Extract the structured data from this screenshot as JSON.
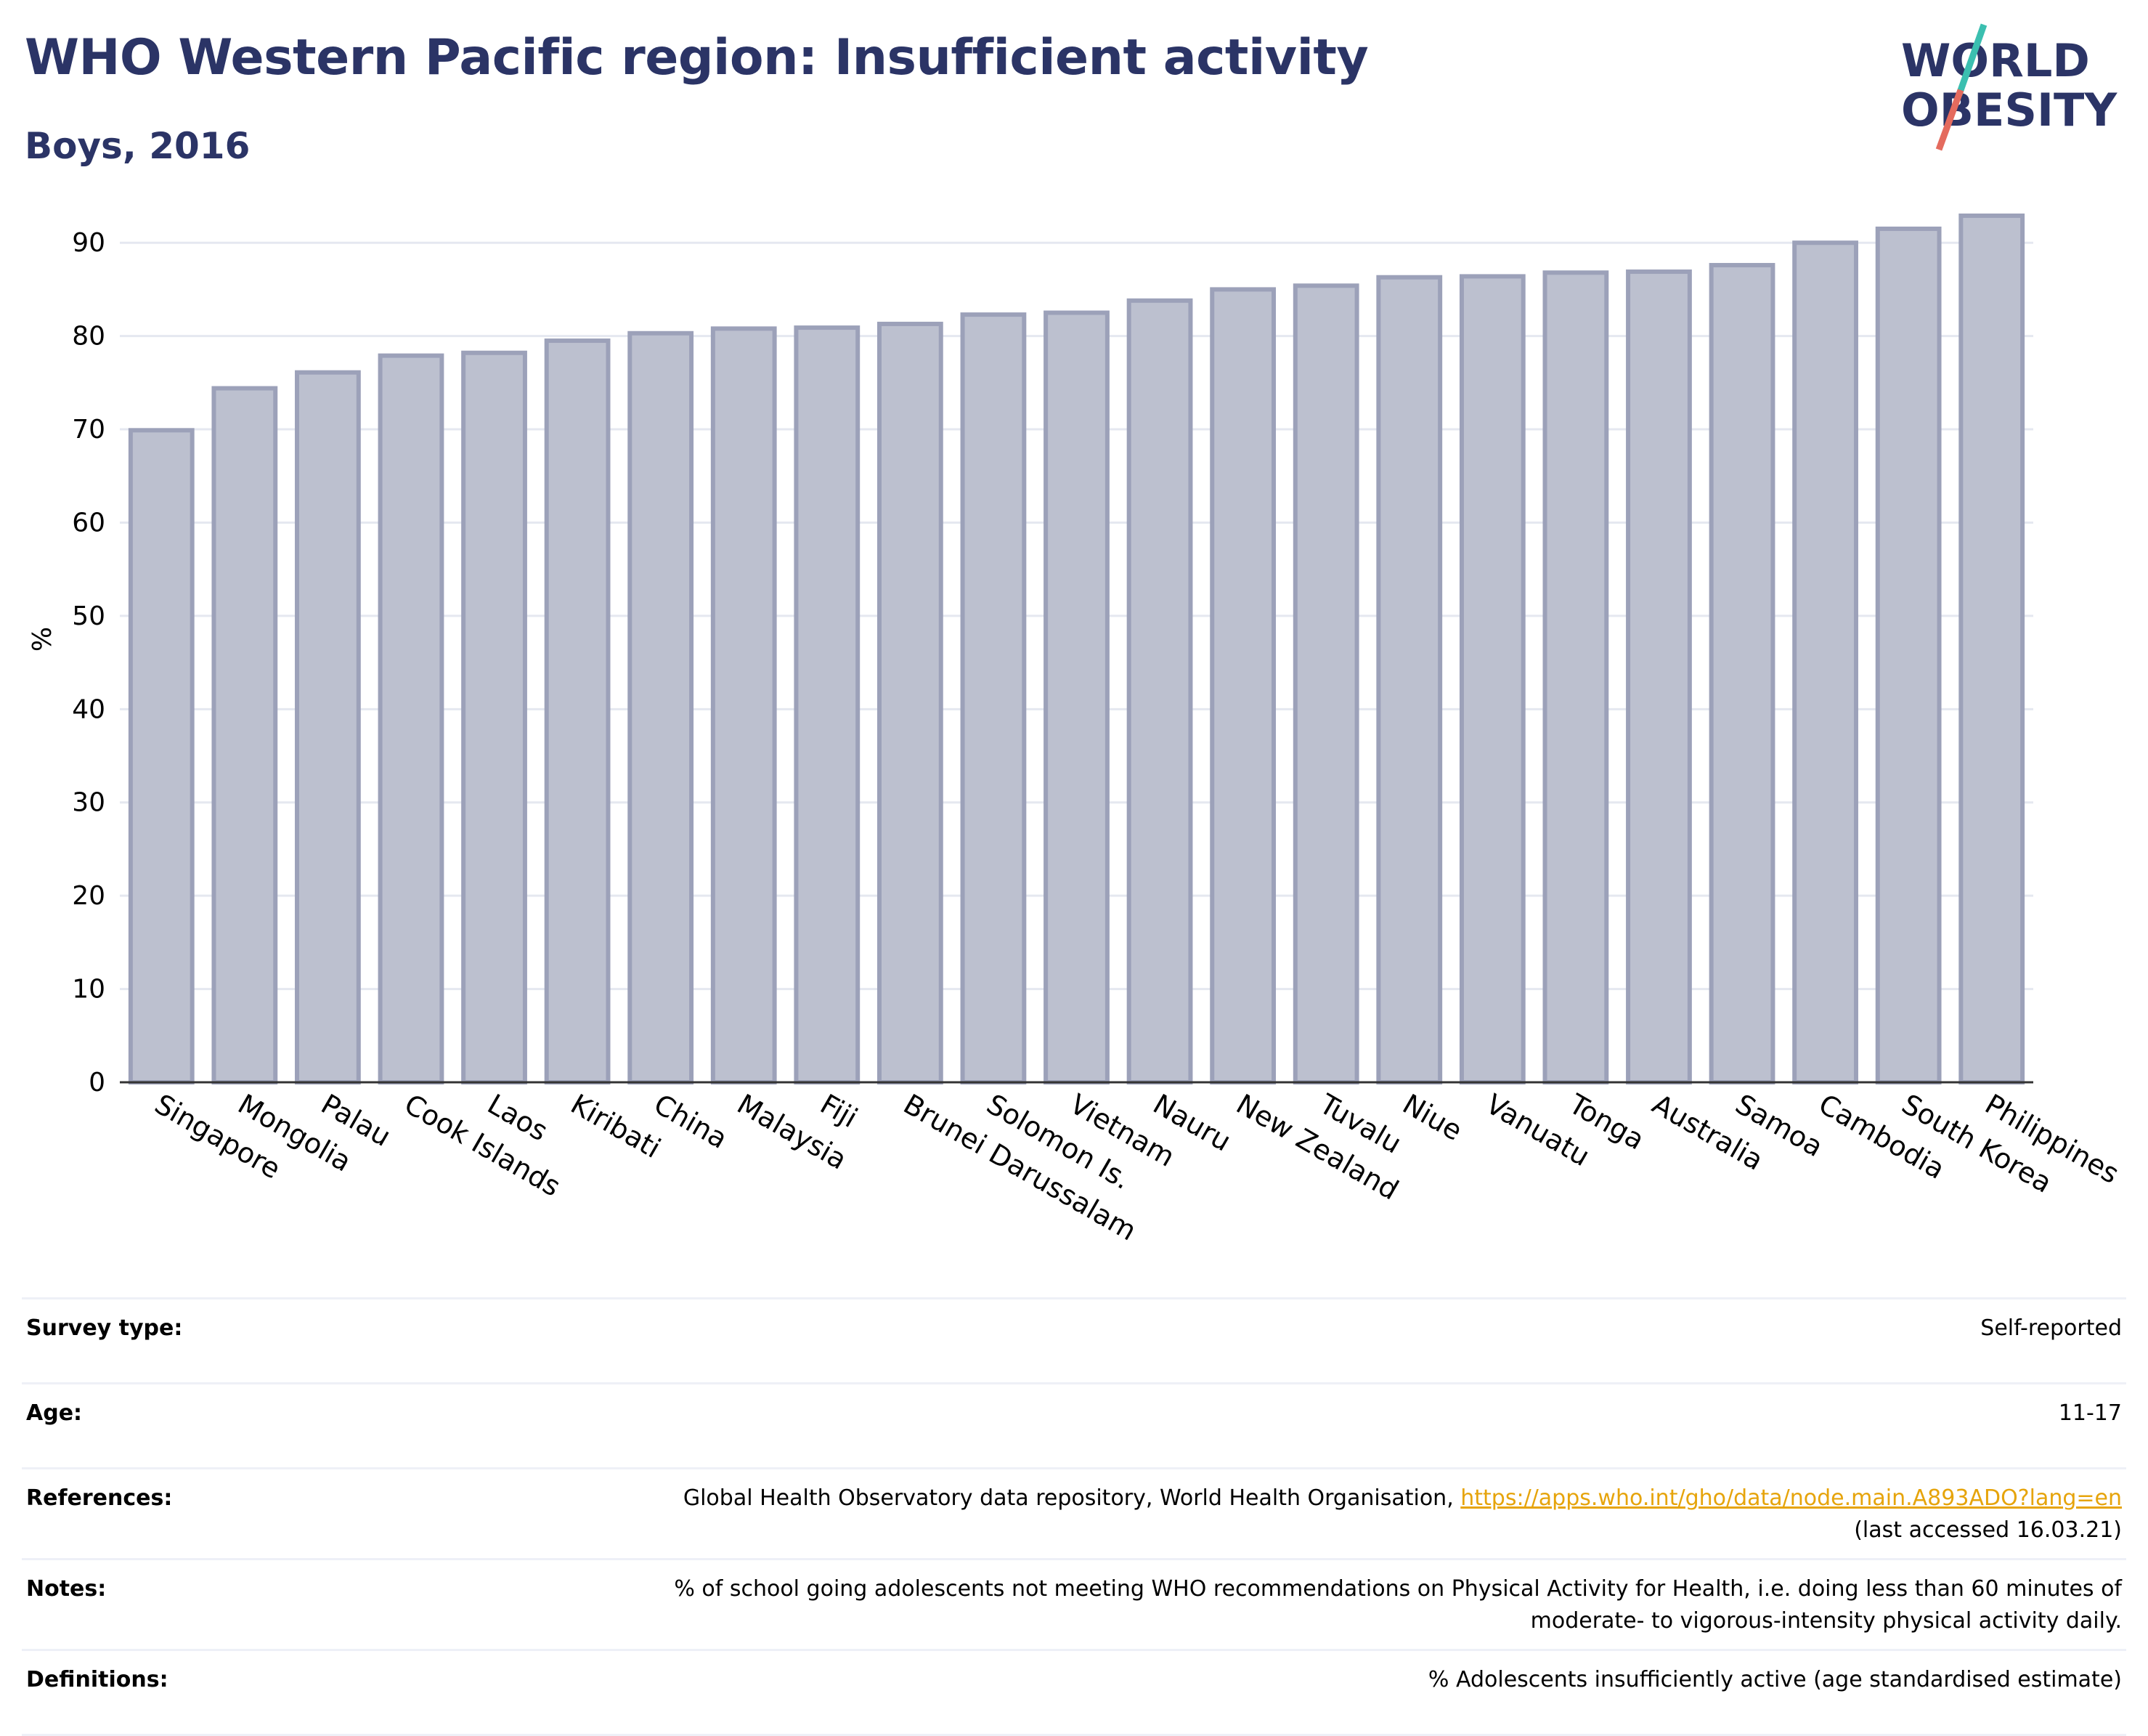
{
  "header": {
    "title": "WHO Western Pacific region: Insufficient activity",
    "subtitle": "Boys, 2016"
  },
  "logo": {
    "line1": "WORLD",
    "line2": "OBESITY",
    "text_color": "#2b3466",
    "slash_colors": [
      "#e46b5e",
      "#3bbfb0"
    ]
  },
  "colors": {
    "bar_fill": "#bcc0cf",
    "bar_stroke": "#9ca1b9",
    "grid": "#e5e8f0",
    "accent_title": "#2b3466",
    "link": "#e6a40b"
  },
  "chart_data": {
    "type": "bar",
    "title": "WHO Western Pacific region: Insufficient activity",
    "subtitle": "Boys, 2016",
    "xlabel": "",
    "ylabel": "%",
    "ylim": [
      0,
      95
    ],
    "yticks": [
      0,
      10,
      20,
      30,
      40,
      50,
      60,
      70,
      80,
      90
    ],
    "grid": true,
    "categories": [
      "Singapore",
      "Mongolia",
      "Palau",
      "Cook Islands",
      "Laos",
      "Kiribati",
      "China",
      "Malaysia",
      "Fiji",
      "Brunei Darussalam",
      "Solomon Is.",
      "Vietnam",
      "Nauru",
      "New Zealand",
      "Tuvalu",
      "Niue",
      "Vanuatu",
      "Tonga",
      "Australia",
      "Samoa",
      "Cambodia",
      "South Korea",
      "Philippines"
    ],
    "values": [
      69.9,
      74.4,
      76.1,
      77.9,
      78.2,
      79.5,
      80.3,
      80.8,
      80.9,
      81.3,
      82.3,
      82.5,
      83.8,
      85.0,
      85.4,
      86.3,
      86.4,
      86.8,
      86.9,
      87.6,
      90.0,
      91.5,
      92.9
    ]
  },
  "info": {
    "survey_type": {
      "label": "Survey type:",
      "value": "Self-reported"
    },
    "age": {
      "label": "Age:",
      "value": "11-17"
    },
    "references": {
      "label": "References:",
      "text": "Global Health Observatory data repository, World Health Organisation, ",
      "link": "https://apps.who.int/gho/data/node.main.A893ADO?lang=en",
      "accessed": "(last accessed 16.03.21)"
    },
    "notes": {
      "label": "Notes:",
      "line1": "% of school going adolescents not meeting WHO recommendations on Physical Activity for Health, i.e. doing less than 60 minutes of",
      "line2": "moderate- to vigorous-intensity physical activity daily."
    },
    "definitions": {
      "label": "Definitions:",
      "value": "% Adolescents insufficiently active (age standardised estimate)"
    }
  }
}
